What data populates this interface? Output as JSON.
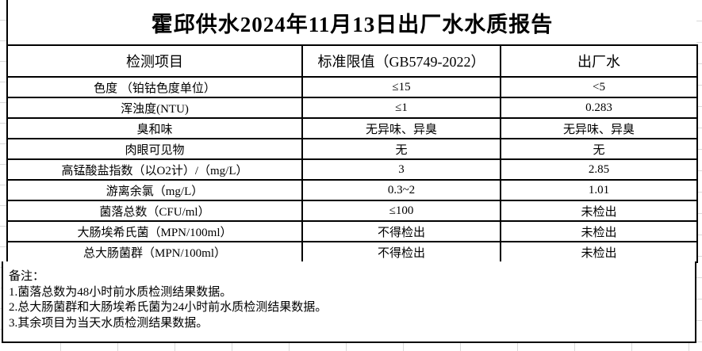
{
  "title": "霍邱供水2024年11月13日出厂水水质报告",
  "table": {
    "columns": [
      "检测项目",
      "标准限值（GB5749-2022）",
      "出厂水"
    ],
    "rows": [
      {
        "item": "色度 （铂钴色度单位）",
        "limit": "≤15",
        "value": "<5"
      },
      {
        "item": "浑浊度(NTU)",
        "limit": "≤1",
        "value": "0.283"
      },
      {
        "item": "臭和味",
        "limit": "无异味、异臭",
        "value": "无异味、异臭"
      },
      {
        "item": "肉眼可见物",
        "limit": "无",
        "value": "无"
      },
      {
        "item": "高锰酸盐指数（以O2计）/（mg/L）",
        "limit": "3",
        "value": "2.85"
      },
      {
        "item": "游离余氯（mg/L）",
        "limit": "0.3~2",
        "value": "1.01"
      },
      {
        "item": "菌落总数（CFU/ml）",
        "limit": "≤100",
        "value": "未检出"
      },
      {
        "item": "大肠埃希氏菌（MPN/100ml）",
        "limit": "不得检出",
        "value": "未检出"
      },
      {
        "item": "总大肠菌群（MPN/100ml）",
        "limit": "不得检出",
        "value": "未检出"
      }
    ]
  },
  "notes": {
    "label": "备注：",
    "items": [
      "1.菌落总数为48小时前水质检测结果数据。",
      "2.总大肠菌群和大肠埃希氏菌为24小时前水质检测结果数据。",
      "3.其余项目为当天水质检测结果数据。"
    ]
  },
  "colors": {
    "border": "#000000",
    "gridline": "#d9d9d9",
    "text": "#000000",
    "background": "#ffffff"
  }
}
